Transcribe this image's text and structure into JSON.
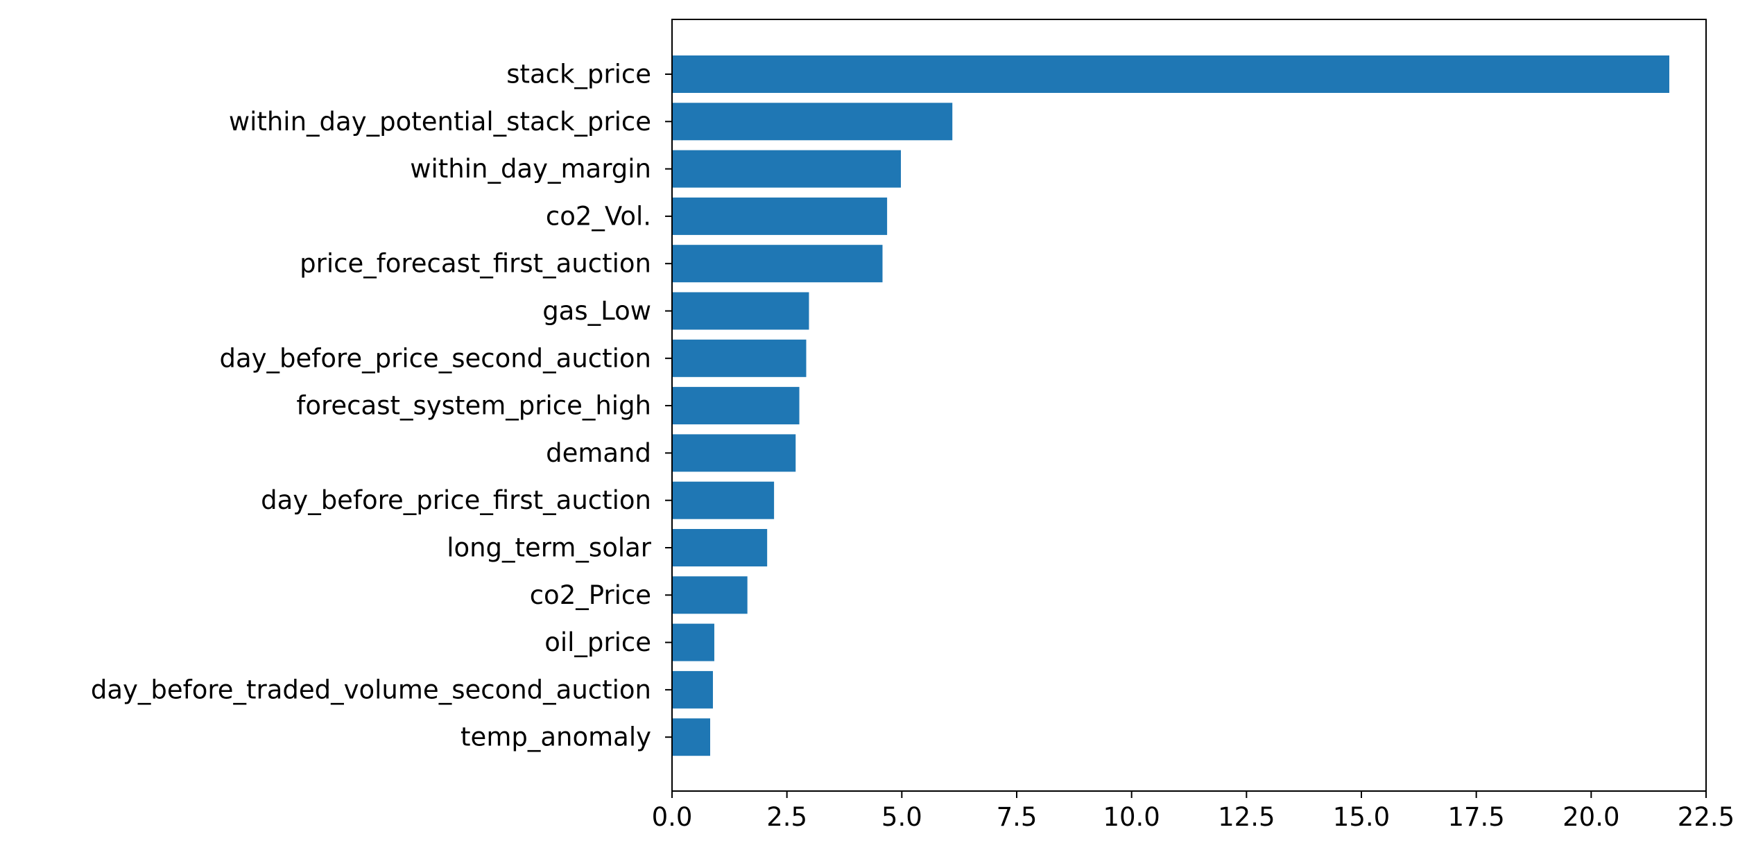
{
  "chart_data": {
    "type": "bar",
    "orientation": "horizontal",
    "title": "",
    "xlabel": "",
    "ylabel": "",
    "xlim": [
      0,
      22.5
    ],
    "xticks": [
      "0.0",
      "2.5",
      "5.0",
      "7.5",
      "10.0",
      "12.5",
      "15.0",
      "17.5",
      "20.0",
      "22.5"
    ],
    "grid": false,
    "bar_color": "#1f77b4",
    "categories": [
      "stack_price",
      "within_day_potential_stack_price",
      "within_day_margin",
      "co2_Vol.",
      "price_forecast_first_auction",
      "gas_Low",
      "day_before_price_second_auction",
      "forecast_system_price_high",
      "demand",
      "day_before_price_first_auction",
      "long_term_solar",
      "co2_Price",
      "oil_price",
      "day_before_traded_volume_second_auction",
      "temp_anomaly"
    ],
    "values": [
      21.7,
      6.1,
      4.98,
      4.68,
      4.58,
      2.98,
      2.92,
      2.77,
      2.69,
      2.22,
      2.07,
      1.64,
      0.92,
      0.89,
      0.83
    ]
  }
}
